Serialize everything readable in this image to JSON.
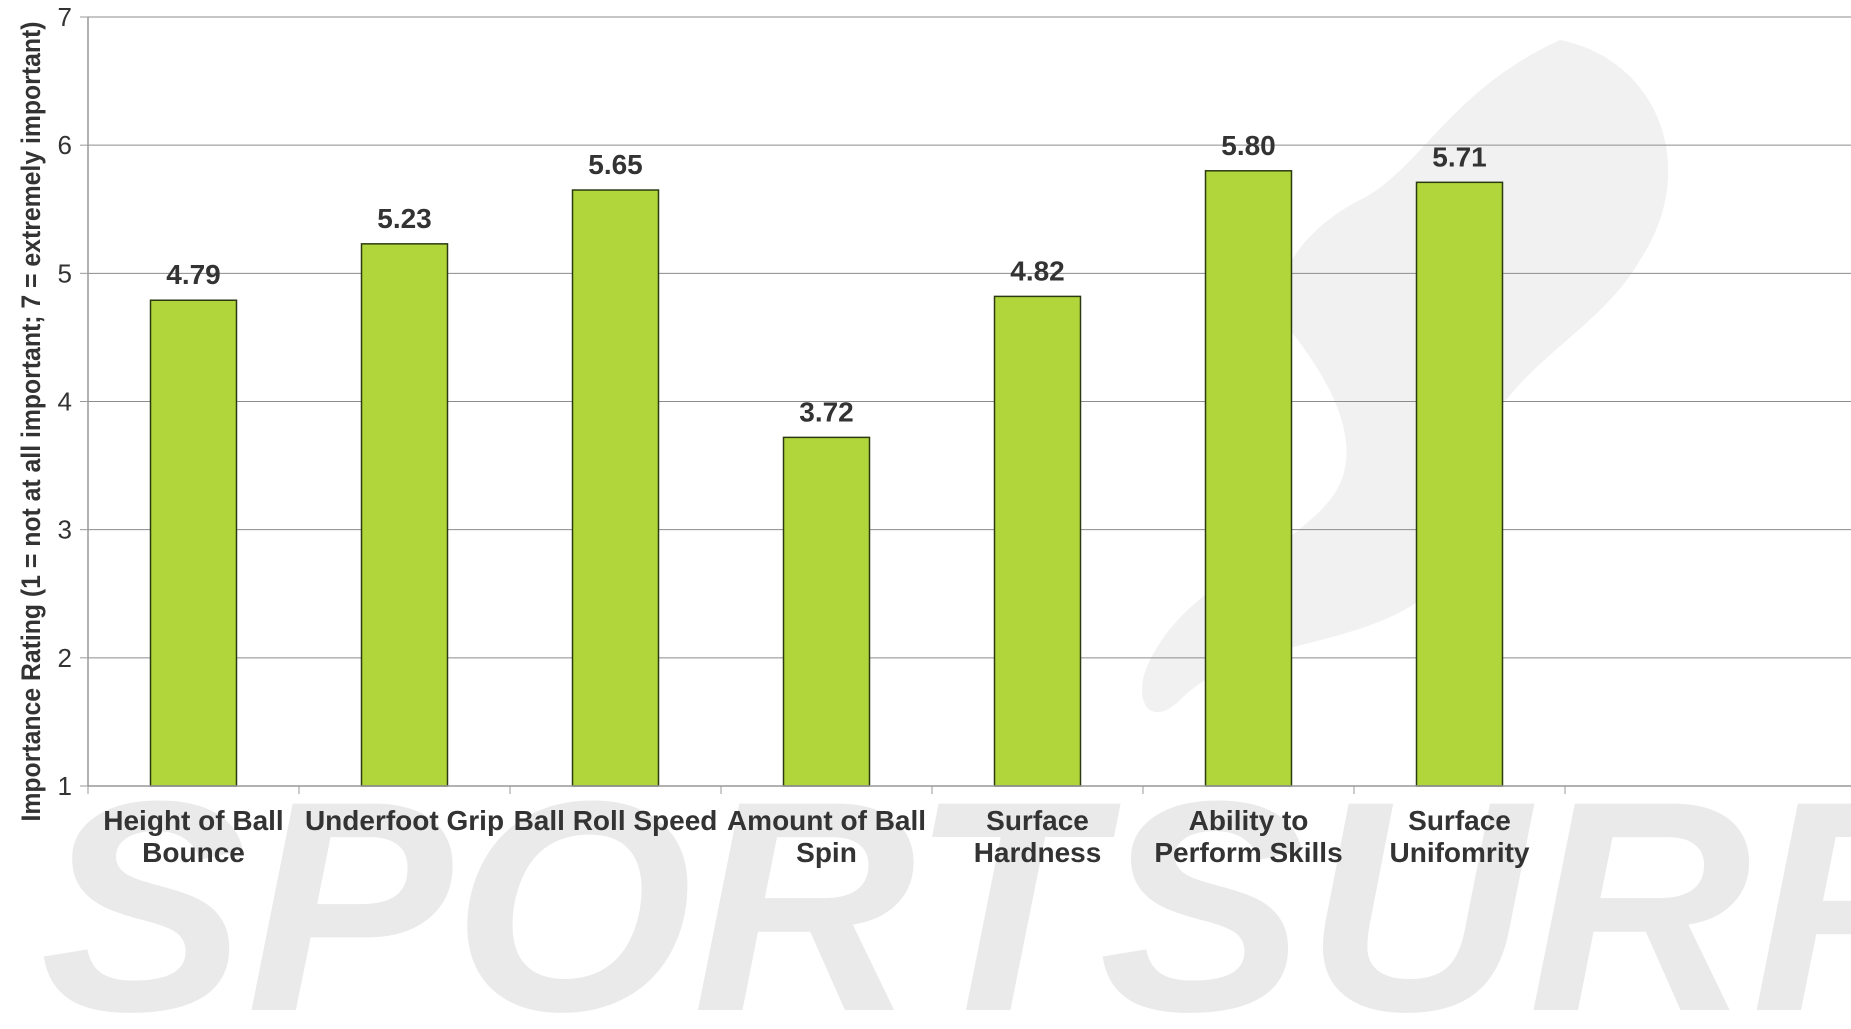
{
  "chart_data": {
    "type": "bar",
    "title": "",
    "xlabel": "",
    "ylabel": "Importance Rating (1 = not at all important; 7 = extremely important)",
    "ylim": [
      1,
      7
    ],
    "yticks": [
      1,
      2,
      3,
      4,
      5,
      6,
      7
    ],
    "grid": true,
    "legend": "none",
    "categories": [
      [
        "Height of Ball",
        "Bounce"
      ],
      [
        "Underfoot Grip"
      ],
      [
        "Ball Roll Speed"
      ],
      [
        "Amount of Ball",
        "Spin"
      ],
      [
        "Surface",
        "Hardness"
      ],
      [
        "Ability to",
        "Perform Skills"
      ],
      [
        "Surface",
        "Unifomrity"
      ]
    ],
    "values": [
      4.79,
      5.23,
      5.65,
      3.72,
      4.82,
      5.8,
      5.71
    ],
    "value_labels": [
      "4.79",
      "5.23",
      "5.65",
      "3.72",
      "4.82",
      "5.80",
      "5.71"
    ],
    "colors": {
      "bar_fill": "#b1d63c",
      "bar_stroke": "#2b3a10",
      "grid": "#8c8c8c",
      "axis": "#999999"
    }
  },
  "watermark": {
    "text": "SPORTSURF"
  }
}
